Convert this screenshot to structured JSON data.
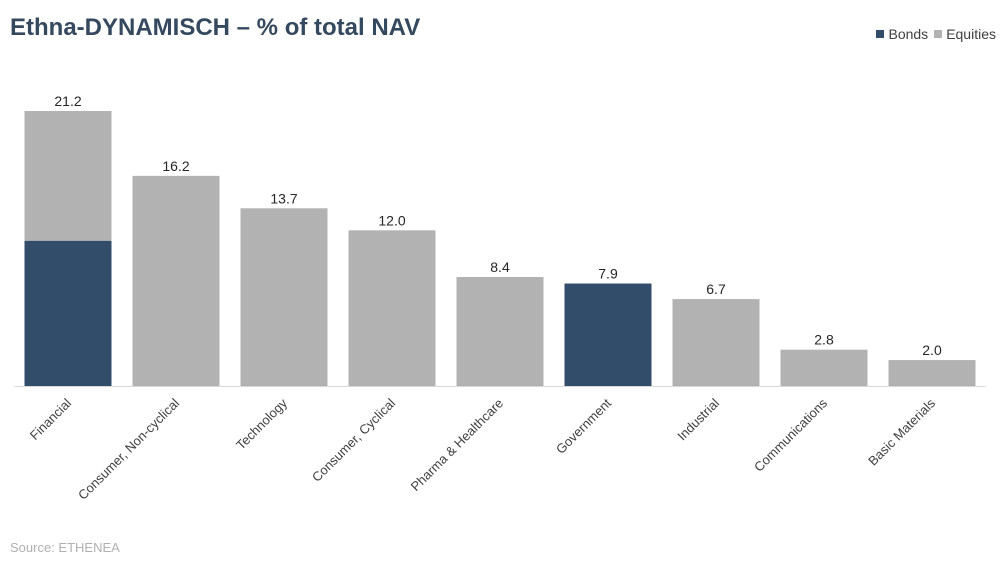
{
  "title": "Ethna-DYNAMISCH – % of total NAV",
  "source": "Source: ETHENEA",
  "colors": {
    "bonds": "#324d6a",
    "equities": "#b2b2b2",
    "title": "#34495e"
  },
  "legend": {
    "bonds": "Bonds",
    "equities": "Equities"
  },
  "chart_data": {
    "type": "bar",
    "stacked": true,
    "categories": [
      "Financial",
      "Consumer, Non-cyclical",
      "Technology",
      "Consumer, Cyclical",
      "Pharma & Healthcare",
      "Government",
      "Industrial",
      "Communications",
      "Basic Materials"
    ],
    "series": [
      {
        "name": "Bonds",
        "color": "#324d6a",
        "values": [
          11.2,
          0,
          0,
          0,
          0,
          7.9,
          0,
          0,
          0
        ]
      },
      {
        "name": "Equities",
        "color": "#b2b2b2",
        "values": [
          10.0,
          16.2,
          13.7,
          12.0,
          8.4,
          0,
          6.7,
          2.8,
          2.0
        ]
      }
    ],
    "totals": [
      "21.2",
      "16.2",
      "13.7",
      "12.0",
      "8.4",
      "7.9",
      "6.7",
      "2.8",
      "2.0"
    ],
    "ylim": [
      0,
      22
    ],
    "grid": false,
    "legend_position": "top-right",
    "xlabel": "",
    "ylabel": ""
  }
}
